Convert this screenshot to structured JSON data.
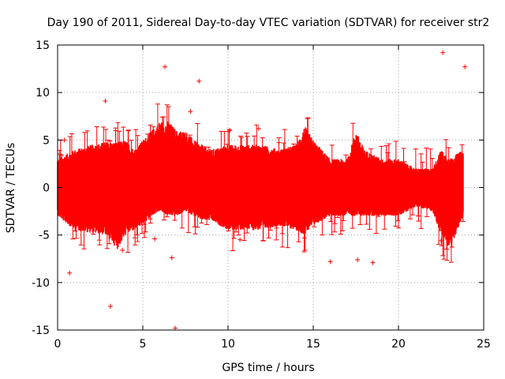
{
  "chart_data": {
    "type": "scatter",
    "title": "Day 190 of 2011, Sidereal Day-to-day VTEC variation (SDTVAR) for receiver str2",
    "xlabel": "GPS time / hours",
    "ylabel": "SDTVAR / TECUs",
    "xlim": [
      0,
      25
    ],
    "ylim": [
      -15,
      15
    ],
    "xticks": [
      "0",
      "5",
      "10",
      "15",
      "20",
      "25"
    ],
    "yticks": [
      "15",
      "10",
      "5",
      "0",
      "-5",
      "-10",
      "-15"
    ],
    "grid": true,
    "color": "#ff0000",
    "marker": "plus",
    "data_range_hours": [
      0,
      23.8
    ],
    "envelope": {
      "x": [
        0.0,
        1.0,
        2.0,
        2.8,
        3.5,
        4.0,
        4.5,
        5.0,
        5.5,
        6.0,
        6.5,
        7.0,
        7.5,
        8.0,
        8.5,
        9.0,
        10.0,
        11.0,
        12.0,
        13.0,
        14.0,
        14.5,
        15.0,
        16.0,
        17.0,
        17.5,
        18.0,
        19.0,
        20.0,
        21.0,
        22.0,
        22.5,
        23.0,
        23.8
      ],
      "upper": [
        3.0,
        4.0,
        4.5,
        4.8,
        4.8,
        5.0,
        4.0,
        5.0,
        6.0,
        7.0,
        7.0,
        6.0,
        6.0,
        5.0,
        4.5,
        4.0,
        4.5,
        4.5,
        4.5,
        4.0,
        4.5,
        6.5,
        5.0,
        3.0,
        3.0,
        6.0,
        4.0,
        3.0,
        3.0,
        2.0,
        2.0,
        4.0,
        3.0,
        4.0
      ],
      "lower": [
        -3.0,
        -4.5,
        -4.8,
        -5.0,
        -6.5,
        -5.0,
        -4.5,
        -4.0,
        -3.0,
        -2.5,
        -3.0,
        -3.0,
        -2.5,
        -3.0,
        -3.5,
        -3.5,
        -4.5,
        -4.5,
        -4.5,
        -4.0,
        -4.5,
        -5.0,
        -4.0,
        -3.0,
        -3.0,
        -3.0,
        -3.0,
        -3.0,
        -3.0,
        -2.0,
        -2.5,
        -5.0,
        -6.5,
        -3.0
      ]
    },
    "outliers": [
      {
        "x": 0.7,
        "y": -9.0
      },
      {
        "x": 3.1,
        "y": -12.5
      },
      {
        "x": 2.8,
        "y": 9.1
      },
      {
        "x": 6.3,
        "y": 12.7
      },
      {
        "x": 6.9,
        "y": -14.8
      },
      {
        "x": 6.7,
        "y": -7.4
      },
      {
        "x": 8.3,
        "y": 11.2
      },
      {
        "x": 7.8,
        "y": 8.0
      },
      {
        "x": 5.7,
        "y": -5.4
      },
      {
        "x": 10.7,
        "y": -5.5
      },
      {
        "x": 10.1,
        "y": 6.0
      },
      {
        "x": 11.8,
        "y": 6.2
      },
      {
        "x": 16.0,
        "y": -7.8
      },
      {
        "x": 17.6,
        "y": -7.6
      },
      {
        "x": 18.5,
        "y": -7.9
      },
      {
        "x": 22.6,
        "y": 14.2
      },
      {
        "x": 23.9,
        "y": 12.7
      },
      {
        "x": 22.5,
        "y": -5.6
      },
      {
        "x": 3.8,
        "y": -6.6
      },
      {
        "x": 0.4,
        "y": 5.0
      }
    ]
  }
}
